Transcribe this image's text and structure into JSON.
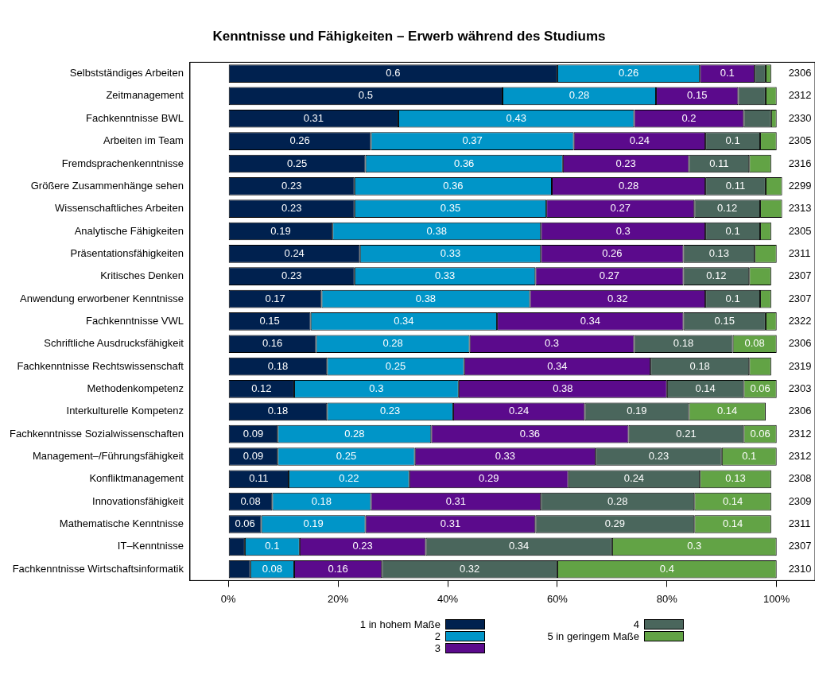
{
  "chart_data": {
    "type": "bar",
    "orientation": "horizontal",
    "stacked": true,
    "title": "Kenntnisse und Fähigkeiten – Erwerb während des Studiums",
    "categories": [
      "Selbstständiges Arbeiten",
      "Zeitmanagement",
      "Fachkenntnisse BWL",
      "Arbeiten im Team",
      "Fremdsprachenkenntnisse",
      "Größere Zusammenhänge sehen",
      "Wissenschaftliches Arbeiten",
      "Analytische Fähigkeiten",
      "Präsentationsfähigkeiten",
      "Kritisches Denken",
      "Anwendung erworbener Kenntnisse",
      "Fachkenntnisse VWL",
      "Schriftliche Ausdrucksfähigkeit",
      "Fachkenntnisse Rechtswissenschaft",
      "Methodenkompetenz",
      "Interkulturelle Kompetenz",
      "Fachkenntnisse Sozialwissenschaften",
      "Management–/Führungsfähigkeit",
      "Konfliktmanagement",
      "Innovationsfähigkeit",
      "Mathematische Kenntnisse",
      "IT–Kenntnisse",
      "Fachkenntnisse Wirtschaftsinformatik"
    ],
    "series": [
      {
        "name": "1 in hohem Maße",
        "color": "#00214f",
        "values": [
          0.6,
          0.5,
          0.31,
          0.26,
          0.25,
          0.23,
          0.23,
          0.19,
          0.24,
          0.23,
          0.17,
          0.15,
          0.16,
          0.18,
          0.12,
          0.18,
          0.09,
          0.09,
          0.11,
          0.08,
          0.06,
          0.03,
          0.04
        ],
        "value_labels": [
          "0.6",
          "0.5",
          "0.31",
          "0.26",
          "0.25",
          "0.23",
          "0.23",
          "0.19",
          "0.24",
          "0.23",
          "0.17",
          "0.15",
          "0.16",
          "0.18",
          "0.12",
          "0.18",
          "0.09",
          "0.09",
          "0.11",
          "0.08",
          "0.06",
          null,
          null
        ]
      },
      {
        "name": "2",
        "color": "#0095c8",
        "values": [
          0.26,
          0.28,
          0.43,
          0.37,
          0.36,
          0.36,
          0.35,
          0.38,
          0.33,
          0.33,
          0.38,
          0.34,
          0.28,
          0.25,
          0.3,
          0.23,
          0.28,
          0.25,
          0.22,
          0.18,
          0.19,
          0.1,
          0.08
        ],
        "value_labels": [
          "0.26",
          "0.28",
          "0.43",
          "0.37",
          "0.36",
          "0.36",
          "0.35",
          "0.38",
          "0.33",
          "0.33",
          "0.38",
          "0.34",
          "0.28",
          "0.25",
          "0.3",
          "0.23",
          "0.28",
          "0.25",
          "0.22",
          "0.18",
          "0.19",
          "0.1",
          "0.08"
        ]
      },
      {
        "name": "3",
        "color": "#5b0a8c",
        "values": [
          0.1,
          0.15,
          0.2,
          0.24,
          0.23,
          0.28,
          0.27,
          0.3,
          0.26,
          0.27,
          0.32,
          0.34,
          0.3,
          0.34,
          0.38,
          0.24,
          0.36,
          0.33,
          0.29,
          0.31,
          0.31,
          0.23,
          0.16
        ],
        "value_labels": [
          "0.1",
          "0.15",
          "0.2",
          "0.24",
          "0.23",
          "0.28",
          "0.27",
          "0.3",
          "0.26",
          "0.27",
          "0.32",
          "0.34",
          "0.3",
          "0.34",
          "0.38",
          "0.24",
          "0.36",
          "0.33",
          "0.29",
          "0.31",
          "0.31",
          "0.23",
          "0.16"
        ]
      },
      {
        "name": "4",
        "color": "#4a665c",
        "values": [
          0.02,
          0.05,
          0.05,
          0.1,
          0.11,
          0.11,
          0.12,
          0.1,
          0.13,
          0.12,
          0.1,
          0.15,
          0.18,
          0.18,
          0.14,
          0.19,
          0.21,
          0.23,
          0.24,
          0.28,
          0.29,
          0.34,
          0.32
        ],
        "value_labels": [
          null,
          null,
          null,
          "0.1",
          "0.11",
          "0.11",
          "0.12",
          "0.1",
          "0.13",
          "0.12",
          "0.1",
          "0.15",
          "0.18",
          "0.18",
          "0.14",
          "0.19",
          "0.21",
          "0.23",
          "0.24",
          "0.28",
          "0.29",
          "0.34",
          "0.32"
        ]
      },
      {
        "name": "5 in geringem Maße",
        "color": "#62a345",
        "values": [
          0.01,
          0.02,
          0.01,
          0.03,
          0.04,
          0.03,
          0.04,
          0.02,
          0.04,
          0.04,
          0.02,
          0.02,
          0.08,
          0.04,
          0.06,
          0.14,
          0.06,
          0.1,
          0.13,
          0.14,
          0.14,
          0.3,
          0.4
        ],
        "value_labels": [
          null,
          null,
          null,
          null,
          null,
          null,
          null,
          null,
          null,
          null,
          null,
          null,
          "0.08",
          null,
          "0.06",
          "0.14",
          "0.06",
          "0.1",
          "0.13",
          "0.14",
          "0.14",
          "0.3",
          "0.4"
        ]
      }
    ],
    "annotations": [
      "2306",
      "2312",
      "2330",
      "2305",
      "2316",
      "2299",
      "2313",
      "2305",
      "2311",
      "2307",
      "2307",
      "2322",
      "2306",
      "2319",
      "2303",
      "2306",
      "2312",
      "2312",
      "2308",
      "2309",
      "2311",
      "2307",
      "2310"
    ],
    "xlim": [
      -0.07,
      1.07
    ],
    "xticks": [
      {
        "value": 0,
        "label": "0%"
      },
      {
        "value": 0.2,
        "label": "20%"
      },
      {
        "value": 0.4,
        "label": "40%"
      },
      {
        "value": 0.6,
        "label": "60%"
      },
      {
        "value": 0.8,
        "label": "80%"
      },
      {
        "value": 1,
        "label": "100%"
      }
    ],
    "grid": false,
    "legend": "bottom"
  }
}
